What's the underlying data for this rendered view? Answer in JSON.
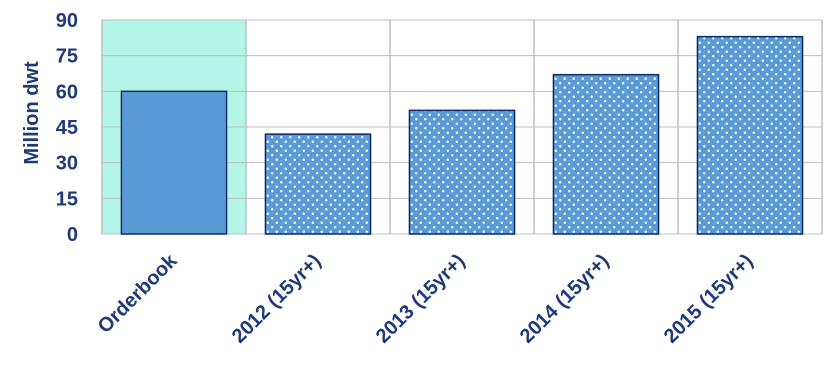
{
  "chart_data": {
    "type": "bar",
    "title": "",
    "xlabel": "",
    "ylabel": "Million dwt",
    "categories": [
      "Orderbook",
      "2012 (15yr+)",
      "2013 (15yr+)",
      "2014 (15yr+)",
      "2015 (15yr+)"
    ],
    "values": [
      60,
      42,
      52,
      67,
      83
    ],
    "ylim": [
      0,
      90
    ],
    "yticks": [
      "0",
      "15",
      "30",
      "45",
      "60",
      "75",
      "90"
    ],
    "grid": true,
    "highlight_category": "Orderbook",
    "colors": {
      "highlight_background": "#b3f5e6",
      "bar_solid": "#5b9bd5",
      "bar_pattern_base": "#5b9bd5",
      "bar_pattern_dot": "#ffffff",
      "bar_border": "#0d2a6e",
      "text": "#1f3a78",
      "grid": "#bfbfbf"
    }
  }
}
